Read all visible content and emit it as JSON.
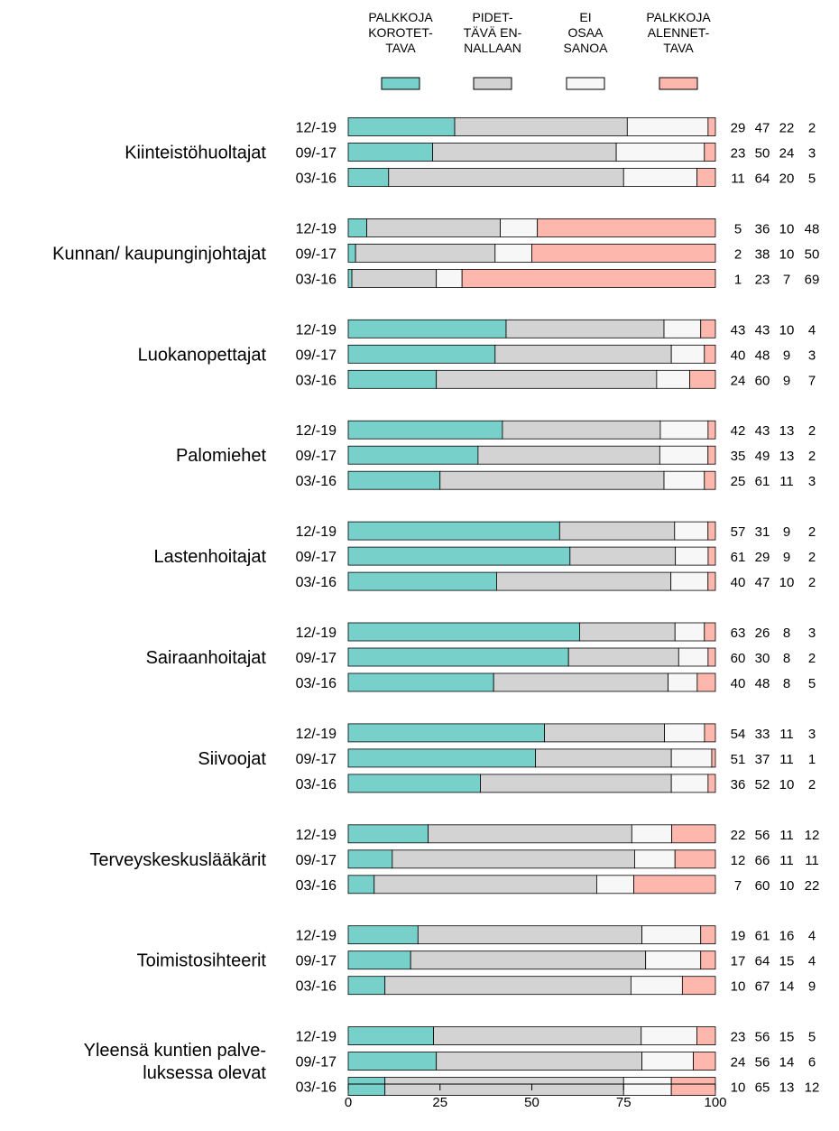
{
  "chart_data": {
    "type": "bar",
    "orientation": "horizontal",
    "stacked": true,
    "xlim": [
      0,
      100
    ],
    "x_ticks": [
      "0",
      "25",
      "50",
      "75",
      "100"
    ],
    "grid": false,
    "legend_position": "top",
    "series": [
      {
        "name_lines": [
          "PALKKOJA",
          "KOROTET-",
          "TAVA"
        ],
        "color": "#77D0CA"
      },
      {
        "name_lines": [
          "PIDET-",
          "TÄVÄ EN-",
          "NALLAAN"
        ],
        "color": "#D3D3D3"
      },
      {
        "name_lines": [
          "EI",
          "OSAA",
          "SANOA"
        ],
        "color": "#F7F7F7"
      },
      {
        "name_lines": [
          "PALKKOJA",
          "ALENNET-",
          "TAVA"
        ],
        "color": "#FDB7AC"
      }
    ],
    "groups": [
      {
        "label_lines": [
          "Kiinteistöhuoltajat"
        ],
        "rows": [
          {
            "period": "12/-19",
            "values": [
              29,
              47,
              22,
              2
            ]
          },
          {
            "period": "09/-17",
            "values": [
              23,
              50,
              24,
              3
            ]
          },
          {
            "period": "03/-16",
            "values": [
              11,
              64,
              20,
              5
            ]
          }
        ]
      },
      {
        "label_lines": [
          "Kunnan/ kaupunginjohtajat"
        ],
        "rows": [
          {
            "period": "12/-19",
            "values": [
              5,
              36,
              10,
              48
            ]
          },
          {
            "period": "09/-17",
            "values": [
              2,
              38,
              10,
              50
            ]
          },
          {
            "period": "03/-16",
            "values": [
              1,
              23,
              7,
              69
            ]
          }
        ]
      },
      {
        "label_lines": [
          "Luokanopettajat"
        ],
        "rows": [
          {
            "period": "12/-19",
            "values": [
              43,
              43,
              10,
              4
            ]
          },
          {
            "period": "09/-17",
            "values": [
              40,
              48,
              9,
              3
            ]
          },
          {
            "period": "03/-16",
            "values": [
              24,
              60,
              9,
              7
            ]
          }
        ]
      },
      {
        "label_lines": [
          "Palomiehet"
        ],
        "rows": [
          {
            "period": "12/-19",
            "values": [
              42,
              43,
              13,
              2
            ]
          },
          {
            "period": "09/-17",
            "values": [
              35,
              49,
              13,
              2
            ]
          },
          {
            "period": "03/-16",
            "values": [
              25,
              61,
              11,
              3
            ]
          }
        ]
      },
      {
        "label_lines": [
          "Lastenhoitajat"
        ],
        "rows": [
          {
            "period": "12/-19",
            "values": [
              57,
              31,
              9,
              2
            ]
          },
          {
            "period": "09/-17",
            "values": [
              61,
              29,
              9,
              2
            ]
          },
          {
            "period": "03/-16",
            "values": [
              40,
              47,
              10,
              2
            ]
          }
        ]
      },
      {
        "label_lines": [
          "Sairaanhoitajat"
        ],
        "rows": [
          {
            "period": "12/-19",
            "values": [
              63,
              26,
              8,
              3
            ]
          },
          {
            "period": "09/-17",
            "values": [
              60,
              30,
              8,
              2
            ]
          },
          {
            "period": "03/-16",
            "values": [
              40,
              48,
              8,
              5
            ]
          }
        ]
      },
      {
        "label_lines": [
          "Siivoojat"
        ],
        "rows": [
          {
            "period": "12/-19",
            "values": [
              54,
              33,
              11,
              3
            ]
          },
          {
            "period": "09/-17",
            "values": [
              51,
              37,
              11,
              1
            ]
          },
          {
            "period": "03/-16",
            "values": [
              36,
              52,
              10,
              2
            ]
          }
        ]
      },
      {
        "label_lines": [
          "Terveyskeskuslääkärit"
        ],
        "rows": [
          {
            "period": "12/-19",
            "values": [
              22,
              56,
              11,
              12
            ]
          },
          {
            "period": "09/-17",
            "values": [
              12,
              66,
              11,
              11
            ]
          },
          {
            "period": "03/-16",
            "values": [
              7,
              60,
              10,
              22
            ]
          }
        ]
      },
      {
        "label_lines": [
          "Toimistosihteerit"
        ],
        "rows": [
          {
            "period": "12/-19",
            "values": [
              19,
              61,
              16,
              4
            ]
          },
          {
            "period": "09/-17",
            "values": [
              17,
              64,
              15,
              4
            ]
          },
          {
            "period": "03/-16",
            "values": [
              10,
              67,
              14,
              9
            ]
          }
        ]
      },
      {
        "label_lines": [
          "Yleensä kuntien palve-",
          "luksessa olevat"
        ],
        "rows": [
          {
            "period": "12/-19",
            "values": [
              23,
              56,
              15,
              5
            ]
          },
          {
            "period": "09/-17",
            "values": [
              24,
              56,
              14,
              6
            ]
          },
          {
            "period": "03/-16",
            "values": [
              10,
              65,
              13,
              12
            ]
          }
        ]
      }
    ]
  }
}
